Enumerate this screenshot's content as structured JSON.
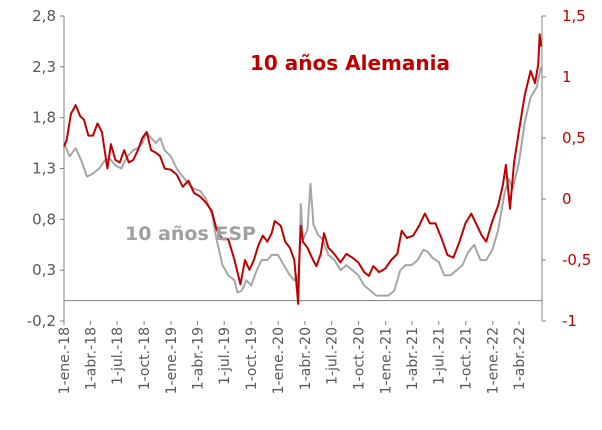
{
  "chart_data": {
    "type": "line",
    "title": "",
    "x_tick_labels": [
      "1-ene.-18",
      "1-abr.-18",
      "1-jul.-18",
      "1-oct.-18",
      "1-ene.-19",
      "1-abr.-19",
      "1-jul.-19",
      "1-oct.-19",
      "1-ene.-20",
      "1-abr.-20",
      "1-jul.-20",
      "1-oct.-20",
      "1-ene.-21",
      "1-abr.-21",
      "1-jul.-21",
      "1-oct.-21",
      "1-ene.-22",
      "1-abr.-22"
    ],
    "y_left": {
      "min": -0.2,
      "max": 2.8,
      "ticks": [
        "-0,2",
        "0,3",
        "0,8",
        "1,3",
        "1,8",
        "2,3",
        "2,8"
      ],
      "tick_values": [
        -0.2,
        0.3,
        0.8,
        1.3,
        1.8,
        2.3,
        2.8
      ]
    },
    "y_right": {
      "min": -1,
      "max": 1.5,
      "ticks": [
        "-1",
        "-0,5",
        "0",
        "0,5",
        "1",
        "1,5"
      ],
      "tick_values": [
        -1,
        -0.5,
        0,
        0.5,
        1,
        1.5
      ],
      "color": "#c00000"
    },
    "x_range": [
      "2018-01-01",
      "2022-06-15"
    ],
    "grid": false,
    "legend": "none",
    "annotations": [
      {
        "text": "10 años Alemania",
        "series": "alemania",
        "color": "#c00000"
      },
      {
        "text": "10 años ESP",
        "series": "esp",
        "color": "#a0a0a0"
      }
    ],
    "series": [
      {
        "key": "esp",
        "axis": "left",
        "color": "#a6a6a6",
        "points": [
          [
            "2018-01-01",
            1.55
          ],
          [
            "2018-01-20",
            1.42
          ],
          [
            "2018-02-10",
            1.5
          ],
          [
            "2018-03-01",
            1.38
          ],
          [
            "2018-03-20",
            1.22
          ],
          [
            "2018-04-10",
            1.25
          ],
          [
            "2018-05-01",
            1.3
          ],
          [
            "2018-05-20",
            1.38
          ],
          [
            "2018-06-05",
            1.4
          ],
          [
            "2018-06-25",
            1.33
          ],
          [
            "2018-07-15",
            1.3
          ],
          [
            "2018-08-05",
            1.42
          ],
          [
            "2018-08-25",
            1.48
          ],
          [
            "2018-09-10",
            1.5
          ],
          [
            "2018-09-25",
            1.55
          ],
          [
            "2018-10-10",
            1.65
          ],
          [
            "2018-10-25",
            1.6
          ],
          [
            "2018-11-10",
            1.55
          ],
          [
            "2018-11-25",
            1.6
          ],
          [
            "2018-12-10",
            1.48
          ],
          [
            "2018-12-31",
            1.42
          ],
          [
            "2019-01-20",
            1.3
          ],
          [
            "2019-02-10",
            1.22
          ],
          [
            "2019-03-01",
            1.15
          ],
          [
            "2019-03-20",
            1.1
          ],
          [
            "2019-04-10",
            1.08
          ],
          [
            "2019-04-30",
            1.0
          ],
          [
            "2019-05-20",
            0.85
          ],
          [
            "2019-06-05",
            0.6
          ],
          [
            "2019-06-25",
            0.35
          ],
          [
            "2019-07-15",
            0.25
          ],
          [
            "2019-08-05",
            0.2
          ],
          [
            "2019-08-15",
            0.08
          ],
          [
            "2019-08-30",
            0.1
          ],
          [
            "2019-09-15",
            0.2
          ],
          [
            "2019-10-01",
            0.15
          ],
          [
            "2019-10-20",
            0.3
          ],
          [
            "2019-11-05",
            0.4
          ],
          [
            "2019-11-25",
            0.4
          ],
          [
            "2019-12-10",
            0.45
          ],
          [
            "2019-12-31",
            0.45
          ],
          [
            "2020-01-20",
            0.35
          ],
          [
            "2020-02-10",
            0.25
          ],
          [
            "2020-02-25",
            0.2
          ],
          [
            "2020-03-05",
            0.25
          ],
          [
            "2020-03-10",
            0.05
          ],
          [
            "2020-03-18",
            0.95
          ],
          [
            "2020-03-25",
            0.6
          ],
          [
            "2020-04-10",
            0.7
          ],
          [
            "2020-04-20",
            1.15
          ],
          [
            "2020-04-30",
            0.75
          ],
          [
            "2020-05-15",
            0.65
          ],
          [
            "2020-06-01",
            0.6
          ],
          [
            "2020-06-20",
            0.45
          ],
          [
            "2020-07-10",
            0.4
          ],
          [
            "2020-08-01",
            0.3
          ],
          [
            "2020-08-20",
            0.35
          ],
          [
            "2020-09-10",
            0.3
          ],
          [
            "2020-09-30",
            0.25
          ],
          [
            "2020-10-20",
            0.15
          ],
          [
            "2020-11-10",
            0.1
          ],
          [
            "2020-11-30",
            0.05
          ],
          [
            "2020-12-20",
            0.05
          ],
          [
            "2021-01-10",
            0.05
          ],
          [
            "2021-01-31",
            0.1
          ],
          [
            "2021-02-20",
            0.3
          ],
          [
            "2021-03-10",
            0.35
          ],
          [
            "2021-03-31",
            0.35
          ],
          [
            "2021-04-20",
            0.4
          ],
          [
            "2021-05-10",
            0.5
          ],
          [
            "2021-05-25",
            0.48
          ],
          [
            "2021-06-10",
            0.42
          ],
          [
            "2021-07-01",
            0.38
          ],
          [
            "2021-07-20",
            0.25
          ],
          [
            "2021-08-10",
            0.25
          ],
          [
            "2021-08-31",
            0.3
          ],
          [
            "2021-09-20",
            0.35
          ],
          [
            "2021-10-10",
            0.48
          ],
          [
            "2021-10-30",
            0.55
          ],
          [
            "2021-11-20",
            0.4
          ],
          [
            "2021-12-10",
            0.4
          ],
          [
            "2021-12-31",
            0.5
          ],
          [
            "2022-01-20",
            0.7
          ],
          [
            "2022-02-10",
            1.05
          ],
          [
            "2022-02-25",
            1.2
          ],
          [
            "2022-03-10",
            1.1
          ],
          [
            "2022-03-31",
            1.35
          ],
          [
            "2022-04-20",
            1.75
          ],
          [
            "2022-05-10",
            2.0
          ],
          [
            "2022-05-31",
            2.1
          ],
          [
            "2022-06-15",
            2.3
          ]
        ]
      },
      {
        "key": "alemania",
        "axis": "right",
        "color": "#c00000",
        "points": [
          [
            "2018-01-01",
            0.43
          ],
          [
            "2018-01-10",
            0.48
          ],
          [
            "2018-01-25",
            0.7
          ],
          [
            "2018-02-10",
            0.77
          ],
          [
            "2018-02-25",
            0.68
          ],
          [
            "2018-03-10",
            0.65
          ],
          [
            "2018-03-25",
            0.52
          ],
          [
            "2018-04-10",
            0.52
          ],
          [
            "2018-04-25",
            0.62
          ],
          [
            "2018-05-10",
            0.55
          ],
          [
            "2018-05-29",
            0.25
          ],
          [
            "2018-06-10",
            0.45
          ],
          [
            "2018-06-25",
            0.32
          ],
          [
            "2018-07-10",
            0.3
          ],
          [
            "2018-07-25",
            0.4
          ],
          [
            "2018-08-10",
            0.3
          ],
          [
            "2018-08-25",
            0.32
          ],
          [
            "2018-09-10",
            0.4
          ],
          [
            "2018-09-25",
            0.5
          ],
          [
            "2018-10-10",
            0.55
          ],
          [
            "2018-10-25",
            0.4
          ],
          [
            "2018-11-10",
            0.38
          ],
          [
            "2018-11-25",
            0.35
          ],
          [
            "2018-12-10",
            0.25
          ],
          [
            "2018-12-31",
            0.24
          ],
          [
            "2019-01-20",
            0.2
          ],
          [
            "2019-02-10",
            0.1
          ],
          [
            "2019-03-01",
            0.15
          ],
          [
            "2019-03-20",
            0.05
          ],
          [
            "2019-04-10",
            0.02
          ],
          [
            "2019-04-30",
            -0.03
          ],
          [
            "2019-05-20",
            -0.1
          ],
          [
            "2019-06-05",
            -0.25
          ],
          [
            "2019-06-25",
            -0.33
          ],
          [
            "2019-07-15",
            -0.33
          ],
          [
            "2019-08-05",
            -0.5
          ],
          [
            "2019-08-25",
            -0.7
          ],
          [
            "2019-09-10",
            -0.5
          ],
          [
            "2019-09-25",
            -0.58
          ],
          [
            "2019-10-10",
            -0.5
          ],
          [
            "2019-10-25",
            -0.38
          ],
          [
            "2019-11-10",
            -0.3
          ],
          [
            "2019-11-25",
            -0.35
          ],
          [
            "2019-12-10",
            -0.28
          ],
          [
            "2019-12-20",
            -0.18
          ],
          [
            "2020-01-10",
            -0.22
          ],
          [
            "2020-01-25",
            -0.35
          ],
          [
            "2020-02-10",
            -0.4
          ],
          [
            "2020-02-25",
            -0.5
          ],
          [
            "2020-03-05",
            -0.75
          ],
          [
            "2020-03-09",
            -0.86
          ],
          [
            "2020-03-12",
            -0.55
          ],
          [
            "2020-03-18",
            -0.22
          ],
          [
            "2020-03-25",
            -0.35
          ],
          [
            "2020-04-10",
            -0.4
          ],
          [
            "2020-04-25",
            -0.48
          ],
          [
            "2020-05-10",
            -0.55
          ],
          [
            "2020-05-25",
            -0.45
          ],
          [
            "2020-06-05",
            -0.28
          ],
          [
            "2020-06-20",
            -0.4
          ],
          [
            "2020-07-10",
            -0.45
          ],
          [
            "2020-07-31",
            -0.52
          ],
          [
            "2020-08-20",
            -0.45
          ],
          [
            "2020-09-10",
            -0.48
          ],
          [
            "2020-09-30",
            -0.52
          ],
          [
            "2020-10-20",
            -0.6
          ],
          [
            "2020-11-05",
            -0.63
          ],
          [
            "2020-11-20",
            -0.55
          ],
          [
            "2020-12-10",
            -0.6
          ],
          [
            "2020-12-31",
            -0.57
          ],
          [
            "2021-01-20",
            -0.5
          ],
          [
            "2021-02-10",
            -0.45
          ],
          [
            "2021-02-25",
            -0.26
          ],
          [
            "2021-03-15",
            -0.32
          ],
          [
            "2021-04-05",
            -0.3
          ],
          [
            "2021-04-25",
            -0.22
          ],
          [
            "2021-05-15",
            -0.12
          ],
          [
            "2021-06-01",
            -0.2
          ],
          [
            "2021-06-20",
            -0.2
          ],
          [
            "2021-07-10",
            -0.32
          ],
          [
            "2021-07-31",
            -0.46
          ],
          [
            "2021-08-20",
            -0.48
          ],
          [
            "2021-09-10",
            -0.35
          ],
          [
            "2021-09-30",
            -0.2
          ],
          [
            "2021-10-20",
            -0.12
          ],
          [
            "2021-11-05",
            -0.2
          ],
          [
            "2021-11-25",
            -0.3
          ],
          [
            "2021-12-10",
            -0.35
          ],
          [
            "2021-12-31",
            -0.18
          ],
          [
            "2022-01-20",
            -0.05
          ],
          [
            "2022-02-05",
            0.12
          ],
          [
            "2022-02-15",
            0.28
          ],
          [
            "2022-03-01",
            -0.08
          ],
          [
            "2022-03-15",
            0.3
          ],
          [
            "2022-03-31",
            0.55
          ],
          [
            "2022-04-20",
            0.85
          ],
          [
            "2022-05-10",
            1.05
          ],
          [
            "2022-05-25",
            0.95
          ],
          [
            "2022-06-05",
            1.1
          ],
          [
            "2022-06-10",
            1.35
          ],
          [
            "2022-06-15",
            1.25
          ]
        ]
      }
    ]
  }
}
